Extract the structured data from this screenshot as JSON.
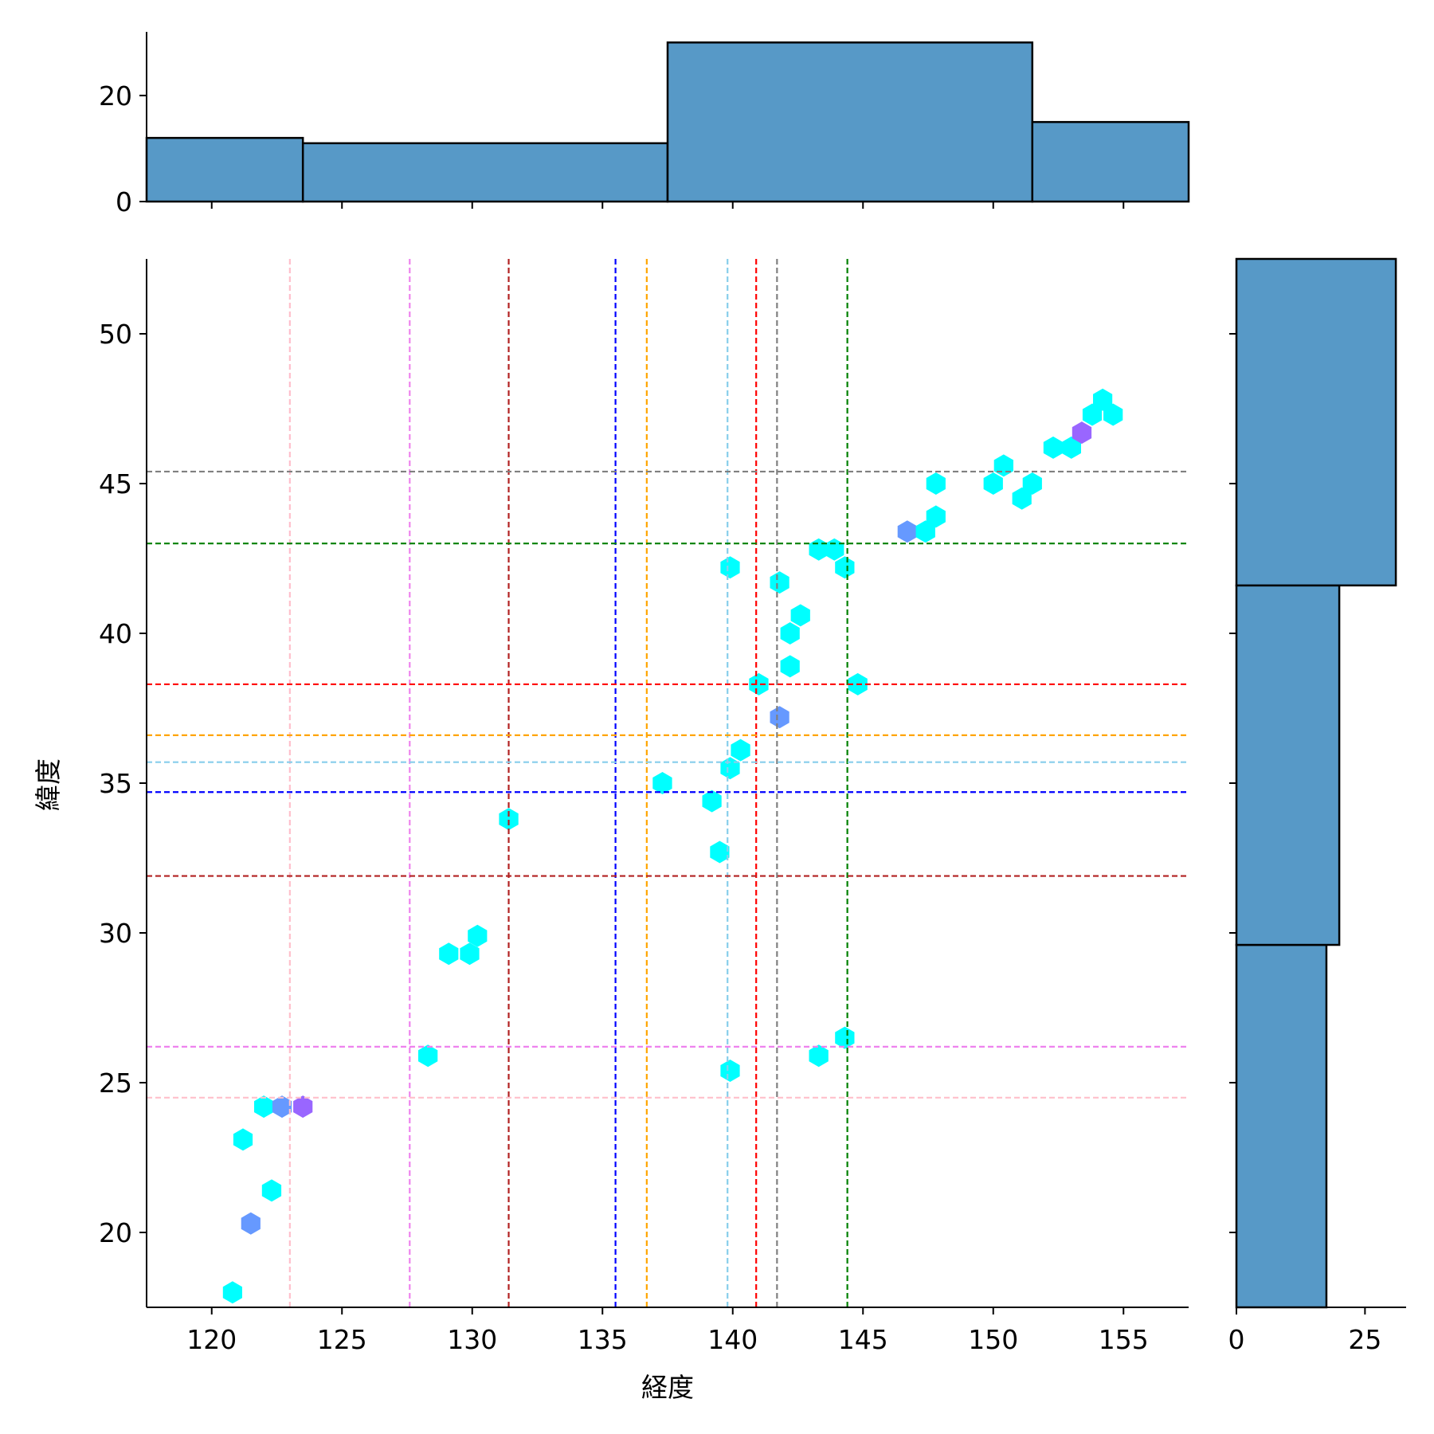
{
  "chart_data": {
    "type": "hexbin-joint",
    "xlabel": "経度",
    "ylabel": "緯度",
    "xlim": [
      117.5,
      157.5
    ],
    "ylim": [
      17.5,
      52.5
    ],
    "xticks": [
      "120",
      "125",
      "130",
      "135",
      "140",
      "145",
      "150",
      "155"
    ],
    "yticks": [
      "20",
      "25",
      "30",
      "35",
      "40",
      "45",
      "50"
    ],
    "hexbins": [
      {
        "x": 120.8,
        "y": 18.0,
        "color": "#00ffff"
      },
      {
        "x": 121.5,
        "y": 20.3,
        "color": "#6699ff"
      },
      {
        "x": 121.2,
        "y": 23.1,
        "color": "#00ffff"
      },
      {
        "x": 122.3,
        "y": 21.4,
        "color": "#00ffff"
      },
      {
        "x": 122.0,
        "y": 24.2,
        "color": "#00ffff"
      },
      {
        "x": 122.7,
        "y": 24.2,
        "color": "#6699ff"
      },
      {
        "x": 123.5,
        "y": 24.2,
        "color": "#9966ff"
      },
      {
        "x": 128.3,
        "y": 25.9,
        "color": "#00ffff"
      },
      {
        "x": 129.1,
        "y": 29.3,
        "color": "#00ffff"
      },
      {
        "x": 129.9,
        "y": 29.3,
        "color": "#00ffff"
      },
      {
        "x": 130.2,
        "y": 29.9,
        "color": "#00ffff"
      },
      {
        "x": 131.4,
        "y": 33.8,
        "color": "#00ffff"
      },
      {
        "x": 137.3,
        "y": 35.0,
        "color": "#00ffff"
      },
      {
        "x": 139.2,
        "y": 34.4,
        "color": "#00ffff"
      },
      {
        "x": 139.5,
        "y": 32.7,
        "color": "#00ffff"
      },
      {
        "x": 139.9,
        "y": 35.5,
        "color": "#00ffff"
      },
      {
        "x": 140.3,
        "y": 36.1,
        "color": "#00ffff"
      },
      {
        "x": 139.9,
        "y": 25.4,
        "color": "#00ffff"
      },
      {
        "x": 139.9,
        "y": 42.2,
        "color": "#00ffff"
      },
      {
        "x": 141.0,
        "y": 38.3,
        "color": "#00ffff"
      },
      {
        "x": 141.8,
        "y": 37.2,
        "color": "#6699ff"
      },
      {
        "x": 141.8,
        "y": 41.7,
        "color": "#00ffff"
      },
      {
        "x": 142.2,
        "y": 38.9,
        "color": "#00ffff"
      },
      {
        "x": 142.2,
        "y": 40.0,
        "color": "#00ffff"
      },
      {
        "x": 142.6,
        "y": 40.6,
        "color": "#00ffff"
      },
      {
        "x": 143.3,
        "y": 42.8,
        "color": "#00ffff"
      },
      {
        "x": 143.3,
        "y": 25.9,
        "color": "#00ffff"
      },
      {
        "x": 144.3,
        "y": 26.5,
        "color": "#00ffff"
      },
      {
        "x": 144.3,
        "y": 42.2,
        "color": "#00ffff"
      },
      {
        "x": 143.9,
        "y": 42.8,
        "color": "#00ffff"
      },
      {
        "x": 144.8,
        "y": 38.3,
        "color": "#00ffff"
      },
      {
        "x": 146.7,
        "y": 43.4,
        "color": "#6699ff"
      },
      {
        "x": 147.4,
        "y": 43.4,
        "color": "#00ffff"
      },
      {
        "x": 147.8,
        "y": 43.9,
        "color": "#00ffff"
      },
      {
        "x": 147.8,
        "y": 45.0,
        "color": "#00ffff"
      },
      {
        "x": 150.0,
        "y": 45.0,
        "color": "#00ffff"
      },
      {
        "x": 150.4,
        "y": 45.6,
        "color": "#00ffff"
      },
      {
        "x": 151.1,
        "y": 44.5,
        "color": "#00ffff"
      },
      {
        "x": 151.5,
        "y": 45.0,
        "color": "#00ffff"
      },
      {
        "x": 152.3,
        "y": 46.2,
        "color": "#00ffff"
      },
      {
        "x": 153.0,
        "y": 46.2,
        "color": "#00ffff"
      },
      {
        "x": 153.4,
        "y": 46.7,
        "color": "#9966ff"
      },
      {
        "x": 153.8,
        "y": 47.3,
        "color": "#00ffff"
      },
      {
        "x": 154.2,
        "y": 47.8,
        "color": "#00ffff"
      },
      {
        "x": 154.6,
        "y": 47.3,
        "color": "#00ffff"
      }
    ],
    "vlines": [
      {
        "x": 123.0,
        "color": "#ffc0cb"
      },
      {
        "x": 127.6,
        "color": "#ee82ee"
      },
      {
        "x": 131.4,
        "color": "#b22222"
      },
      {
        "x": 135.5,
        "color": "#0000ff"
      },
      {
        "x": 136.7,
        "color": "#ffa500"
      },
      {
        "x": 139.8,
        "color": "#87ceeb"
      },
      {
        "x": 140.9,
        "color": "#ff0000"
      },
      {
        "x": 141.7,
        "color": "#808080"
      },
      {
        "x": 144.4,
        "color": "#008000"
      }
    ],
    "hlines": [
      {
        "y": 24.5,
        "color": "#ffc0cb"
      },
      {
        "y": 26.2,
        "color": "#ee82ee"
      },
      {
        "y": 31.9,
        "color": "#b22222"
      },
      {
        "y": 34.7,
        "color": "#0000ff"
      },
      {
        "y": 36.6,
        "color": "#ffa500"
      },
      {
        "y": 35.7,
        "color": "#87ceeb"
      },
      {
        "y": 38.3,
        "color": "#ff0000"
      },
      {
        "y": 45.4,
        "color": "#808080"
      },
      {
        "y": 43.0,
        "color": "#008000"
      }
    ],
    "top_histogram": {
      "ylim": [
        0,
        32
      ],
      "yticks": [
        "0",
        "20"
      ],
      "bins": [
        {
          "x0": 117.5,
          "x1": 123.5,
          "count": 12
        },
        {
          "x0": 123.5,
          "x1": 137.5,
          "count": 11
        },
        {
          "x0": 137.5,
          "x1": 151.5,
          "count": 30
        },
        {
          "x0": 151.5,
          "x1": 157.5,
          "count": 15
        }
      ]
    },
    "right_histogram": {
      "xlim": [
        0,
        33
      ],
      "xticks": [
        "0",
        "25"
      ],
      "bins": [
        {
          "y0": 17.5,
          "y1": 29.6,
          "count": 17.5
        },
        {
          "y0": 29.6,
          "y1": 41.6,
          "count": 20
        },
        {
          "y0": 41.6,
          "y1": 52.5,
          "count": 31
        }
      ]
    },
    "bar_color": "#5799c7",
    "grid": false,
    "legend": "none"
  }
}
